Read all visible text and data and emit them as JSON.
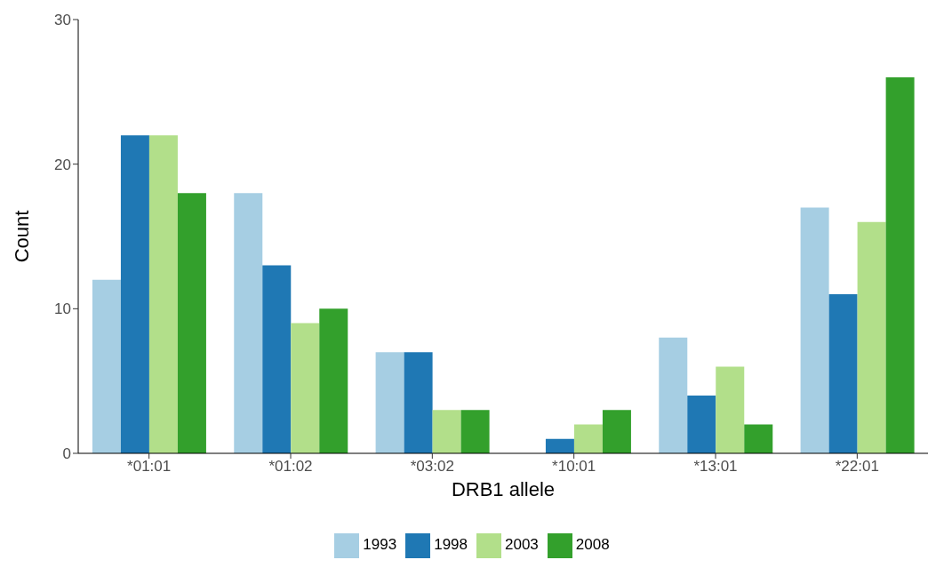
{
  "chart_data": {
    "type": "bar",
    "xlabel": "DRB1 allele",
    "ylabel": "Count",
    "categories": [
      "*01:01",
      "*01:02",
      "*03:02",
      "*10:01",
      "*13:01",
      "*22:01"
    ],
    "series": [
      {
        "name": "1993",
        "color": "#a6cee3",
        "values": [
          12,
          18,
          7,
          0,
          8,
          17
        ]
      },
      {
        "name": "1998",
        "color": "#1f78b4",
        "values": [
          22,
          13,
          7,
          1,
          4,
          11
        ]
      },
      {
        "name": "2003",
        "color": "#b2df8a",
        "values": [
          22,
          9,
          3,
          2,
          6,
          16
        ]
      },
      {
        "name": "2008",
        "color": "#33a02c",
        "values": [
          18,
          10,
          3,
          3,
          2,
          26
        ]
      }
    ],
    "ylim": [
      0,
      30
    ],
    "yticks": [
      0,
      10,
      20,
      30
    ],
    "grid": false,
    "legend": "bottom"
  }
}
